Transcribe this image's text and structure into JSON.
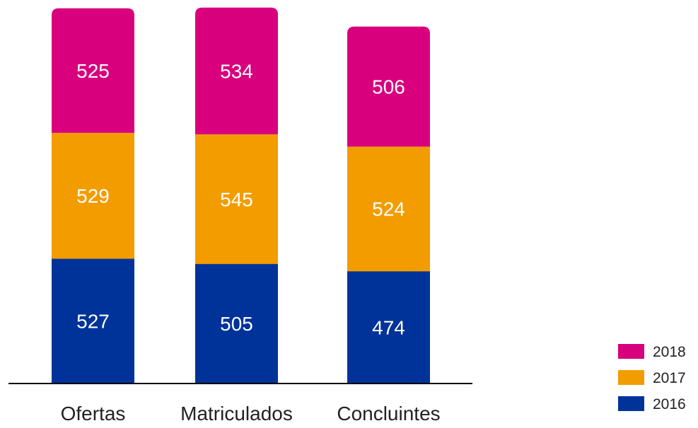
{
  "chart_data": {
    "type": "bar",
    "stacked": true,
    "categories": [
      "Ofertas",
      "Matriculados",
      "Concluintes"
    ],
    "series": [
      {
        "name": "2016",
        "color": "#00339A",
        "values": [
          527,
          505,
          474
        ]
      },
      {
        "name": "2017",
        "color": "#F39C00",
        "values": [
          529,
          545,
          524
        ]
      },
      {
        "name": "2018",
        "color": "#D9007E",
        "values": [
          525,
          534,
          506
        ]
      }
    ],
    "title": "",
    "xlabel": "",
    "ylabel": "",
    "ylim": [
      0,
      1600
    ],
    "grid": false,
    "legend_position": "bottom-right",
    "data_labels": true,
    "label_color": "#ffffff",
    "axis_color": "#000000"
  }
}
